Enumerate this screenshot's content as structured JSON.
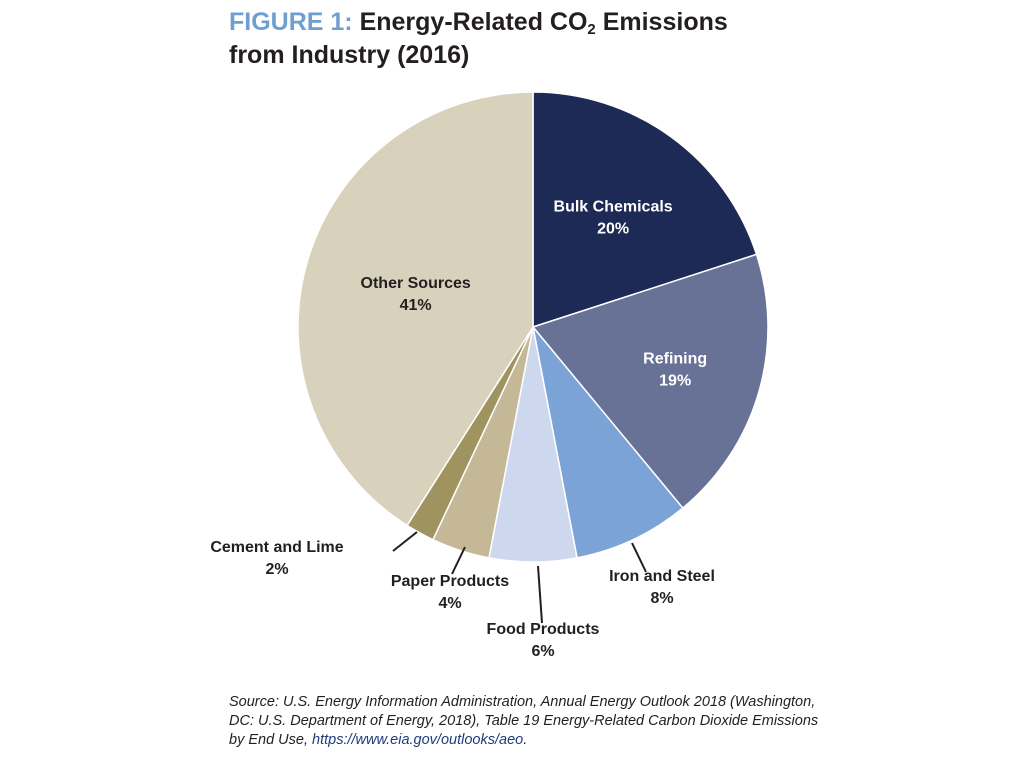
{
  "title": {
    "figure_label": "FIGURE 1:",
    "text_main": "Energy-Related CO",
    "text_sub": "2",
    "text_tail": " Emissions",
    "line2": "from Industry (2016)"
  },
  "chart_data": {
    "type": "pie",
    "title": "FIGURE 1: Energy-Related CO2 Emissions from Industry (2016)",
    "unit": "%",
    "slices": [
      {
        "label": "Bulk Chemicals",
        "value": 20,
        "value_label": "20%",
        "color": "#1c2a55",
        "label_color": "#ffffff"
      },
      {
        "label": "Refining",
        "value": 19,
        "value_label": "19%",
        "color": "#687196",
        "label_color": "#ffffff"
      },
      {
        "label": "Iron and Steel",
        "value": 8,
        "value_label": "8%",
        "color": "#7ba3d6",
        "label_color": "#231f20"
      },
      {
        "label": "Food Products",
        "value": 6,
        "value_label": "6%",
        "color": "#cdd8ee",
        "label_color": "#231f20"
      },
      {
        "label": "Paper Products",
        "value": 4,
        "value_label": "4%",
        "color": "#c4b896",
        "label_color": "#231f20"
      },
      {
        "label": "Cement and Lime",
        "value": 2,
        "value_label": "2%",
        "color": "#9f9460",
        "label_color": "#231f20"
      },
      {
        "label": "Other Sources",
        "value": 41,
        "value_label": "41%",
        "color": "#d8d2bc",
        "label_color": "#231f20"
      }
    ]
  },
  "source": {
    "text": "Source: U.S. Energy Information Administration, Annual Energy Outlook 2018 (Washington, DC: U.S. Department of Energy, 2018), Table 19 Energy-Related Carbon Dioxide Emissions by End Use, ",
    "link": "https://www.eia.gov/outlooks/aeo",
    "end": "."
  }
}
